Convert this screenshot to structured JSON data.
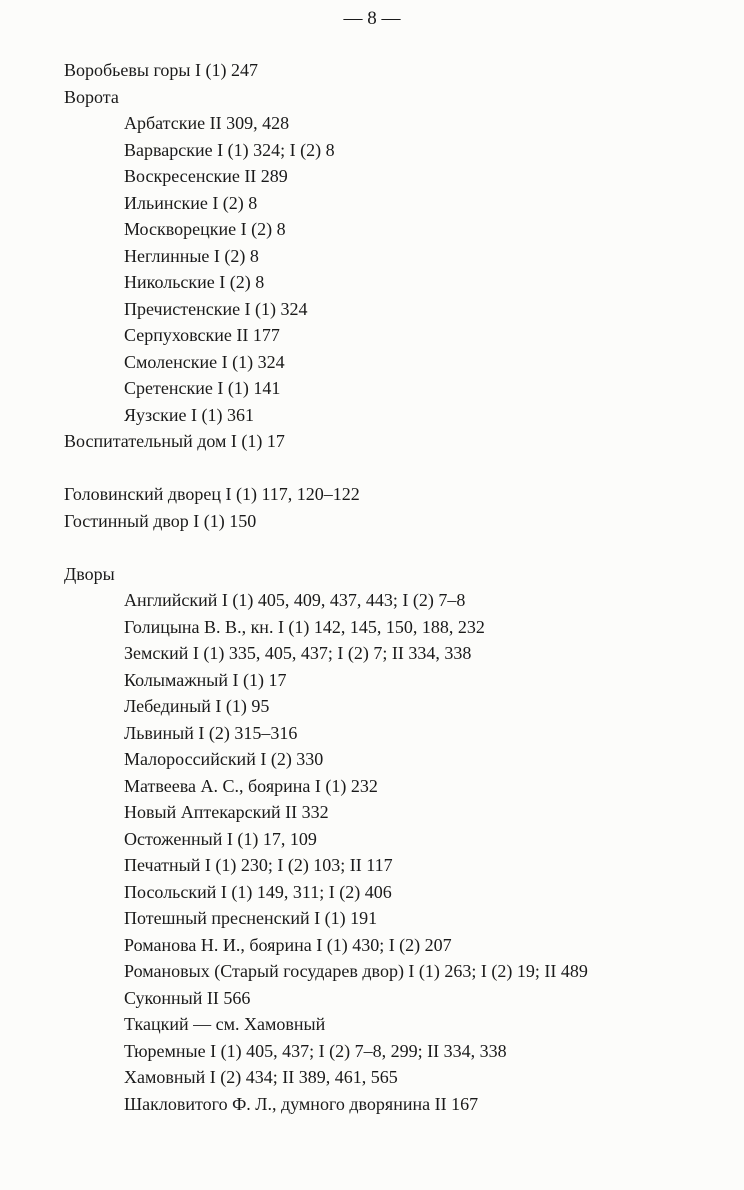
{
  "page_number": "— 8 —",
  "entries_1": [
    {
      "text": "Воробьевы горы I (1) 247"
    },
    {
      "text": "Ворота",
      "sub": [
        "Арбатские II 309, 428",
        "Варварские I (1) 324; I (2) 8",
        "Воскресенские II 289",
        "Ильинские I (2) 8",
        "Москворецкие I (2) 8",
        "Неглинные I (2) 8",
        "Никольские I (2) 8",
        "Пречистенские I (1) 324",
        "Серпуховские II 177",
        "Смоленские I (1) 324",
        "Сретенские I (1) 141",
        "Яузские I (1) 361"
      ]
    },
    {
      "text": "Воспитательный дом I (1) 17"
    }
  ],
  "entries_2": [
    "Головинский дворец I (1) 117, 120–122",
    "Гостинный двор I (1) 150"
  ],
  "dvory": {
    "heading": "Дворы",
    "items": [
      "Английский I (1) 405, 409, 437, 443; I (2) 7–8",
      "Голицына В. В., кн. I (1) 142, 145, 150, 188, 232",
      "Земский I (1) 335, 405, 437; I (2) 7; II 334, 338",
      "Колымажный I (1) 17",
      "Лебединый I (1) 95",
      "Львиный I (2) 315–316",
      "Малороссийский I (2) 330",
      "Матвеева А. С., боярина I (1) 232",
      "Новый Аптекарский II 332",
      "Остоженный I (1) 17, 109",
      "Печатный I (1) 230; I (2) 103; II 117",
      "Посольский I (1) 149, 311; I (2) 406",
      "Потешный пресненский I (1) 191",
      "Романова Н. И., боярина I (1) 430; I (2) 207",
      "Романовых (Старый государев двор) I (1) 263; I (2) 19; II 489",
      "Суконный II 566",
      "Ткацкий — см. Хамовный",
      "Тюремные I (1) 405, 437; I (2) 7–8, 299; II 334, 338",
      "Хамовный I (2) 434; II 389, 461, 565",
      "Шакловитого Ф. Л., думного дворянина II 167"
    ]
  }
}
